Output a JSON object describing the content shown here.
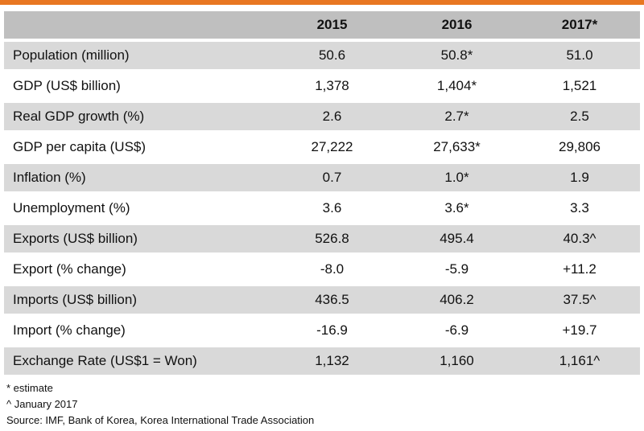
{
  "table": {
    "headers": [
      "",
      "2015",
      "2016",
      "2017*"
    ],
    "rows": [
      {
        "label": "Population (million)",
        "values": [
          "50.6",
          "50.8*",
          "51.0"
        ]
      },
      {
        "label": "GDP (US$ billion)",
        "values": [
          "1,378",
          "1,404*",
          "1,521"
        ]
      },
      {
        "label": "Real GDP growth (%)",
        "values": [
          "2.6",
          "2.7*",
          "2.5"
        ]
      },
      {
        "label": "GDP per capita (US$)",
        "values": [
          "27,222",
          "27,633*",
          "29,806"
        ]
      },
      {
        "label": "Inflation (%)",
        "values": [
          "0.7",
          "1.0*",
          "1.9"
        ]
      },
      {
        "label": "Unemployment (%)",
        "values": [
          "3.6",
          "3.6*",
          "3.3"
        ]
      },
      {
        "label": "Exports (US$ billion)",
        "values": [
          "526.8",
          "495.4",
          "40.3^"
        ]
      },
      {
        "label": "Export (% change)",
        "values": [
          "-8.0",
          "-5.9",
          "+11.2"
        ]
      },
      {
        "label": "Imports (US$ billion)",
        "values": [
          "436.5",
          "406.2",
          "37.5^"
        ]
      },
      {
        "label": "Import (% change)",
        "values": [
          "-16.9",
          "-6.9",
          "+19.7"
        ]
      },
      {
        "label": "Exchange Rate (US$1 = Won)",
        "values": [
          "1,132",
          "1,160",
          "1,161^"
        ]
      }
    ]
  },
  "notes": {
    "estimate": "* estimate",
    "january": "^ January 2017",
    "source": "Source: IMF, Bank of Korea, Korea International Trade Association"
  },
  "colors": {
    "accent_bar": "#e87722",
    "header_bg": "#bfbfbf",
    "shaded_row_bg": "#d9d9d9"
  }
}
